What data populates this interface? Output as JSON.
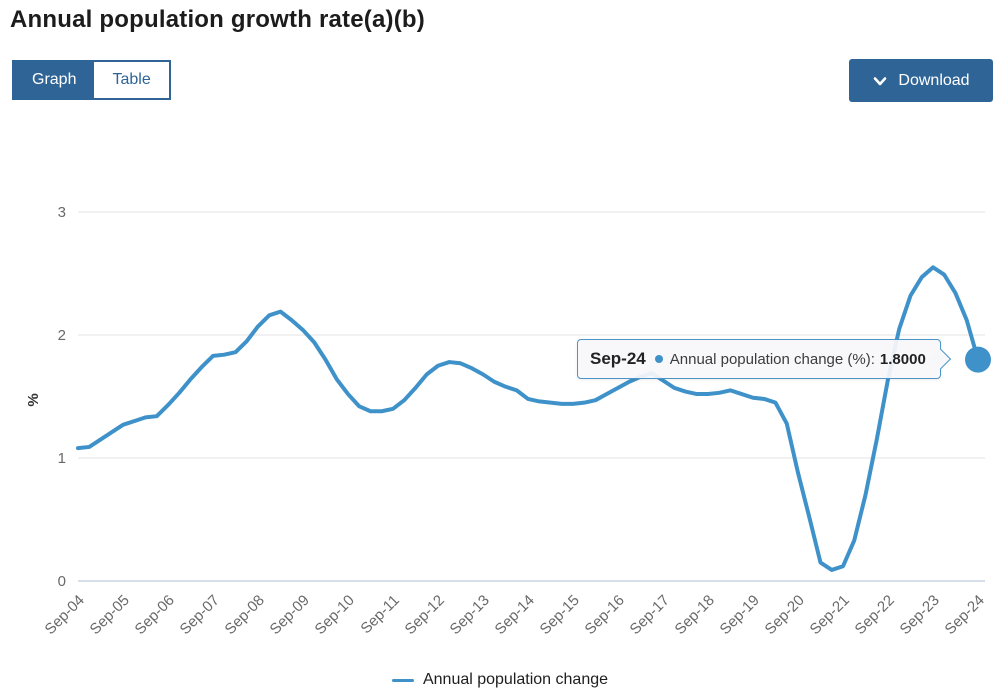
{
  "page": {
    "title": "Annual population growth rate(a)(b)"
  },
  "view_toggle": {
    "graph_label": "Graph",
    "table_label": "Table",
    "active": "Graph"
  },
  "download": {
    "label": "Download"
  },
  "tooltip": {
    "x_label": "Sep-24",
    "series_label": "Annual population change (%):",
    "value": "1.8000"
  },
  "legend": {
    "label": "Annual population change"
  },
  "colors": {
    "accent_blue": "#2f6596",
    "line_blue": "#3e92c9",
    "grid": "#e3e3e3",
    "baseline": "#c7d3e2",
    "tick_text": "#696969",
    "axis_label_text": "#333333"
  },
  "chart_data": {
    "type": "line",
    "title": "Annual population growth rate(a)(b)",
    "xlabel": "",
    "ylabel": "%",
    "ylim": [
      0,
      3
    ],
    "yticks": [
      0,
      1,
      2,
      3
    ],
    "grid": "horizontal",
    "legend_position": "bottom",
    "x_tick_labels": [
      "Sep-04",
      "Sep-05",
      "Sep-06",
      "Sep-07",
      "Sep-08",
      "Sep-09",
      "Sep-10",
      "Sep-11",
      "Sep-12",
      "Sep-13",
      "Sep-14",
      "Sep-15",
      "Sep-16",
      "Sep-17",
      "Sep-18",
      "Sep-19",
      "Sep-20",
      "Sep-21",
      "Sep-22",
      "Sep-23",
      "Sep-24"
    ],
    "x_frequency": "quarterly",
    "x": [
      "Sep-04",
      "Dec-04",
      "Mar-05",
      "Jun-05",
      "Sep-05",
      "Dec-05",
      "Mar-06",
      "Jun-06",
      "Sep-06",
      "Dec-06",
      "Mar-07",
      "Jun-07",
      "Sep-07",
      "Dec-07",
      "Mar-08",
      "Jun-08",
      "Sep-08",
      "Dec-08",
      "Mar-09",
      "Jun-09",
      "Sep-09",
      "Dec-09",
      "Mar-10",
      "Jun-10",
      "Sep-10",
      "Dec-10",
      "Mar-11",
      "Jun-11",
      "Sep-11",
      "Dec-11",
      "Mar-12",
      "Jun-12",
      "Sep-12",
      "Dec-12",
      "Mar-13",
      "Jun-13",
      "Sep-13",
      "Dec-13",
      "Mar-14",
      "Jun-14",
      "Sep-14",
      "Dec-14",
      "Mar-15",
      "Jun-15",
      "Sep-15",
      "Dec-15",
      "Mar-16",
      "Jun-16",
      "Sep-16",
      "Dec-16",
      "Mar-17",
      "Jun-17",
      "Sep-17",
      "Dec-17",
      "Mar-18",
      "Jun-18",
      "Sep-18",
      "Dec-18",
      "Mar-19",
      "Jun-19",
      "Sep-19",
      "Dec-19",
      "Mar-20",
      "Jun-20",
      "Sep-20",
      "Dec-20",
      "Mar-21",
      "Jun-21",
      "Sep-21",
      "Dec-21",
      "Mar-22",
      "Jun-22",
      "Sep-22",
      "Dec-22",
      "Mar-23",
      "Jun-23",
      "Sep-23",
      "Dec-23",
      "Mar-24",
      "Jun-24",
      "Sep-24"
    ],
    "series": [
      {
        "name": "Annual population change",
        "values": [
          1.08,
          1.09,
          1.15,
          1.21,
          1.27,
          1.3,
          1.33,
          1.34,
          1.43,
          1.53,
          1.64,
          1.74,
          1.83,
          1.84,
          1.86,
          1.95,
          2.07,
          2.16,
          2.19,
          2.12,
          2.04,
          1.94,
          1.8,
          1.64,
          1.52,
          1.42,
          1.38,
          1.38,
          1.4,
          1.47,
          1.57,
          1.68,
          1.75,
          1.78,
          1.77,
          1.73,
          1.68,
          1.62,
          1.58,
          1.55,
          1.48,
          1.46,
          1.45,
          1.44,
          1.44,
          1.45,
          1.47,
          1.52,
          1.57,
          1.62,
          1.66,
          1.69,
          1.63,
          1.57,
          1.54,
          1.52,
          1.52,
          1.53,
          1.55,
          1.52,
          1.49,
          1.48,
          1.45,
          1.28,
          0.88,
          0.52,
          0.15,
          0.09,
          0.12,
          0.33,
          0.7,
          1.15,
          1.64,
          2.05,
          2.32,
          2.47,
          2.55,
          2.49,
          2.34,
          2.12,
          1.8
        ]
      }
    ],
    "highlighted_point": {
      "x": "Sep-24",
      "value": 1.8,
      "value_label": "1.8000"
    }
  }
}
